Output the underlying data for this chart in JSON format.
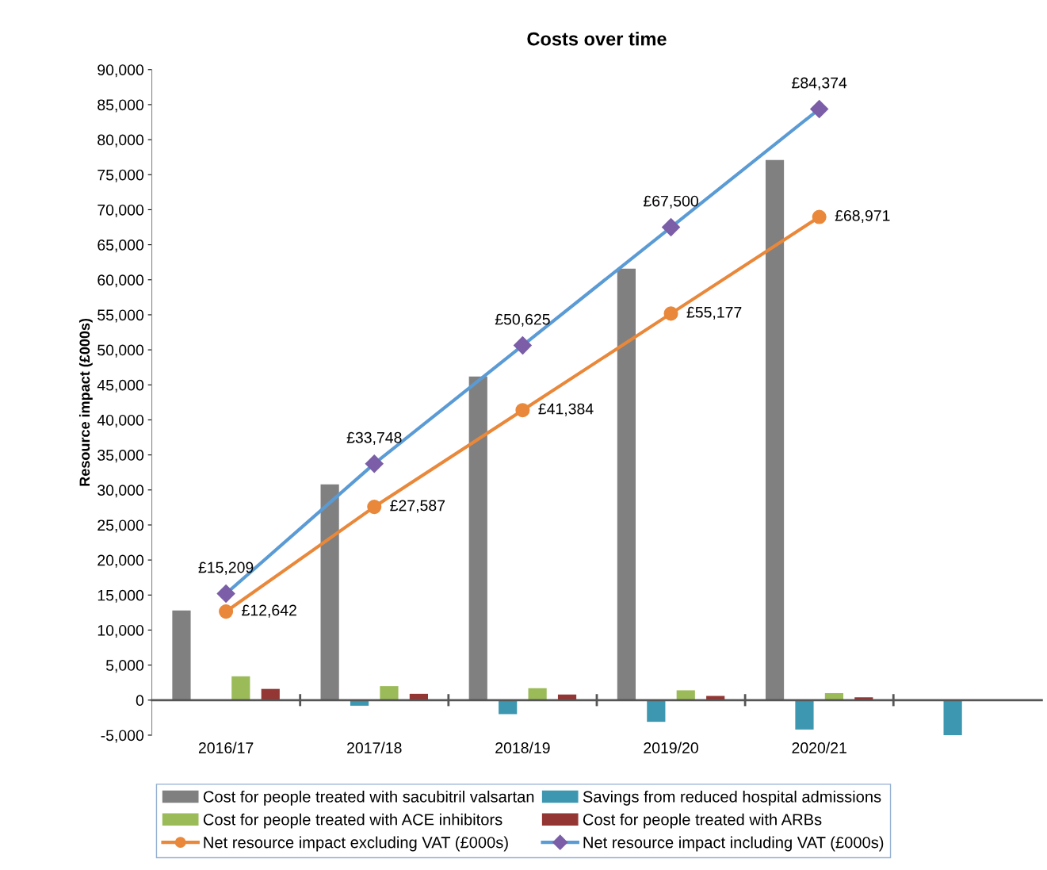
{
  "chart_data": {
    "type": "bar",
    "title": "Costs over time",
    "ylabel": "Resource impact (£000s)",
    "categories": [
      "2016/17",
      "2017/18",
      "2018/19",
      "2019/20",
      "2020/21",
      null
    ],
    "series": [
      {
        "name": "Cost for people treated with sacubitril valsartan",
        "color": "#808080",
        "values": [
          12800,
          30800,
          46200,
          61600,
          77100,
          null
        ]
      },
      {
        "name": "Savings from reduced hospital admissions",
        "color": "#3e97b0",
        "values": [
          null,
          -800,
          -2000,
          -3100,
          -4200,
          -5000
        ]
      },
      {
        "name": "Cost for people treated with ACE inhibitors",
        "color": "#9bbb59",
        "values": [
          3400,
          2000,
          1700,
          1400,
          1000,
          null
        ]
      },
      {
        "name": "Cost for people treated with ARBs",
        "color": "#943634",
        "values": [
          1600,
          900,
          800,
          600,
          400,
          null
        ]
      },
      {
        "name": "Net resource impact excluding VAT (£000s)",
        "type": "line",
        "color": "#e9883a",
        "marker": "circle",
        "values": [
          12642,
          27587,
          41384,
          55177,
          68971,
          null
        ],
        "value_labels": [
          "£12,642",
          "£27,587",
          "£41,384",
          "£55,177",
          "£68,971",
          null
        ]
      },
      {
        "name": "Net resource impact including VAT (£000s)",
        "type": "line",
        "color": "#5b9bd5",
        "marker": "diamond",
        "values": [
          15209,
          33748,
          50625,
          67500,
          84374,
          null
        ],
        "value_labels": [
          "£15,209",
          "£33,748",
          "£50,625",
          "£67,500",
          "£84,374",
          null
        ]
      }
    ],
    "ylim": [
      -5000,
      90000
    ],
    "yticks": [
      {
        "value": -5000,
        "label": "-5,000"
      },
      {
        "value": 0,
        "label": "0"
      },
      {
        "value": 5000,
        "label": "5,000"
      },
      {
        "value": 10000,
        "label": "10,000"
      },
      {
        "value": 15000,
        "label": "15,000"
      },
      {
        "value": 20000,
        "label": "20,000"
      },
      {
        "value": 25000,
        "label": "25,000"
      },
      {
        "value": 30000,
        "label": "30,000"
      },
      {
        "value": 35000,
        "label": "35,000"
      },
      {
        "value": 40000,
        "label": "40,000"
      },
      {
        "value": 45000,
        "label": "45,000"
      },
      {
        "value": 50000,
        "label": "50,000"
      },
      {
        "value": 55000,
        "label": "55,000"
      },
      {
        "value": 60000,
        "label": "60,000"
      },
      {
        "value": 65000,
        "label": "65,000"
      },
      {
        "value": 70000,
        "label": "70,000"
      },
      {
        "value": 75000,
        "label": "75,000"
      },
      {
        "value": 80000,
        "label": "80,000"
      },
      {
        "value": 85000,
        "label": "85,000"
      },
      {
        "value": 90000,
        "label": "90,000"
      }
    ],
    "legend": "bottom"
  }
}
